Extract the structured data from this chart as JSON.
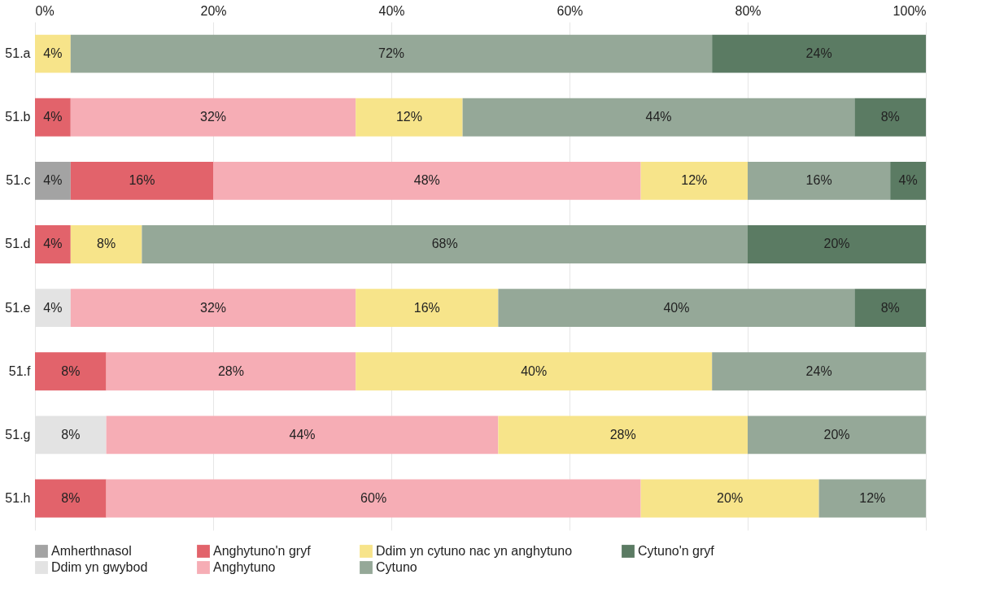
{
  "chart_data": {
    "type": "bar",
    "orientation": "horizontal",
    "stacked": true,
    "categories": [
      "51.a",
      "51.b",
      "51.c",
      "51.d",
      "51.e",
      "51.f",
      "51.g",
      "51.h"
    ],
    "xlim": [
      0,
      100
    ],
    "xticks": [
      {
        "value": 0,
        "label": "0%"
      },
      {
        "value": 20,
        "label": "20%"
      },
      {
        "value": 40,
        "label": "40%"
      },
      {
        "value": 60,
        "label": "60%"
      },
      {
        "value": 80,
        "label": "80%"
      },
      {
        "value": 100,
        "label": "100%"
      }
    ],
    "grid": "x",
    "legend": "bottom",
    "series": [
      {
        "name": "Amherthnasol",
        "color": "#a3a3a3",
        "values": [
          null,
          null,
          4,
          null,
          null,
          null,
          null,
          null
        ],
        "value_labels": [
          null,
          null,
          "4%",
          null,
          null,
          null,
          null,
          null
        ]
      },
      {
        "name": "Ddim yn gwybod",
        "color": "#e3e3e3",
        "values": [
          null,
          null,
          null,
          null,
          4,
          null,
          8,
          null
        ],
        "value_labels": [
          null,
          null,
          null,
          null,
          "4%",
          null,
          "8%",
          null
        ]
      },
      {
        "name": "Anghytuno'n gryf",
        "color": "#e2636b",
        "values": [
          null,
          4,
          16,
          4,
          null,
          8,
          null,
          8
        ],
        "value_labels": [
          null,
          "4%",
          "16%",
          "4%",
          null,
          "8%",
          null,
          "8%"
        ]
      },
      {
        "name": "Anghytuno",
        "color": "#f6adb5",
        "values": [
          null,
          32,
          48,
          null,
          32,
          28,
          44,
          60
        ],
        "value_labels": [
          null,
          "32%",
          "48%",
          null,
          "32%",
          "28%",
          "44%",
          "60%"
        ]
      },
      {
        "name": "Ddim yn cytuno nac yn anghytuno",
        "color": "#f7e48a",
        "values": [
          4,
          12,
          12,
          8,
          16,
          40,
          28,
          20
        ],
        "value_labels": [
          "4%",
          "12%",
          "12%",
          "8%",
          "16%",
          "40%",
          "28%",
          "20%"
        ]
      },
      {
        "name": "Cytuno",
        "color": "#95a898",
        "values": [
          72,
          44,
          16,
          68,
          40,
          24,
          20,
          12
        ],
        "value_labels": [
          "72%",
          "44%",
          "16%",
          "68%",
          "40%",
          "24%",
          "20%",
          "12%"
        ]
      },
      {
        "name": "Cytuno'n gryf",
        "color": "#5b7b63",
        "values": [
          24,
          8,
          4,
          20,
          8,
          null,
          null,
          null
        ],
        "value_labels": [
          "24%",
          "8%",
          "4%",
          "20%",
          "8%",
          null,
          null,
          null
        ]
      }
    ]
  }
}
